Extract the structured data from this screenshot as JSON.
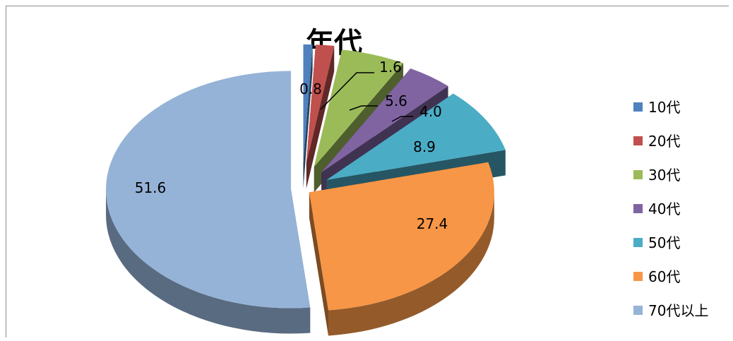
{
  "chart_data": {
    "type": "pie",
    "title": "年代",
    "categories": [
      "10代",
      "20代",
      "30代",
      "40代",
      "50代",
      "60代",
      "70代以上"
    ],
    "values": [
      0.8,
      1.6,
      5.6,
      4.0,
      8.9,
      27.4,
      51.6
    ],
    "data_labels": [
      "0.8",
      "1.6",
      "5.6",
      "4.0",
      "8.9",
      "27.4",
      "51.6"
    ],
    "colors": [
      "#4f81bd",
      "#c0504d",
      "#9bbb59",
      "#8064a2",
      "#4bacc6",
      "#f79646",
      "#95b3d7"
    ],
    "legend_position": "right",
    "style": "3d-exploded"
  }
}
